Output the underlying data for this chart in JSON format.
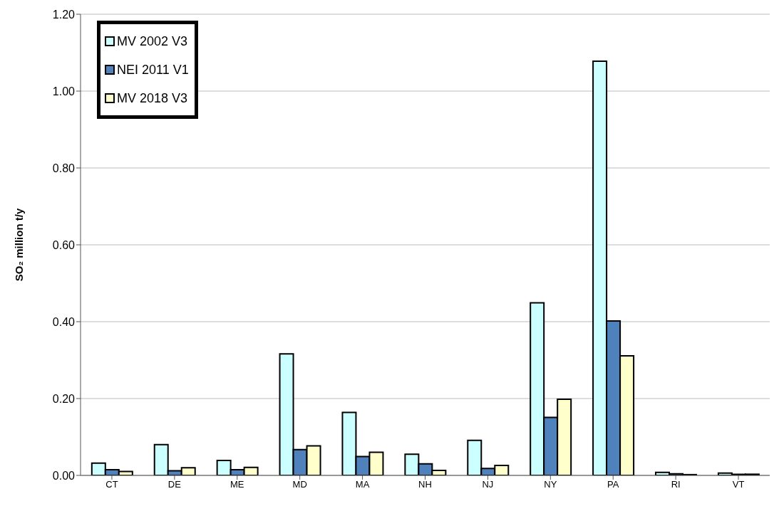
{
  "chart_data": {
    "type": "bar",
    "ylabel": "SO₂ million t/y",
    "categories": [
      "CT",
      "DE",
      "ME",
      "MD",
      "MA",
      "NH",
      "NJ",
      "NY",
      "PA",
      "RI",
      "VT"
    ],
    "series": [
      {
        "name": "MV 2002 V3",
        "color": "#ccffff",
        "values": [
          0.032,
          0.08,
          0.039,
          0.316,
          0.164,
          0.055,
          0.091,
          0.449,
          1.078,
          0.008,
          0.006
        ]
      },
      {
        "name": "NEI 2011 V1",
        "color": "#4f81bd",
        "values": [
          0.015,
          0.012,
          0.015,
          0.067,
          0.049,
          0.03,
          0.018,
          0.151,
          0.402,
          0.004,
          0.003
        ]
      },
      {
        "name": "MV 2018 V3",
        "color": "#ffffcc",
        "values": [
          0.01,
          0.02,
          0.021,
          0.077,
          0.06,
          0.013,
          0.026,
          0.198,
          0.311,
          0.002,
          0.003
        ]
      }
    ],
    "ylim": [
      0,
      1.2
    ],
    "yticks": [
      {
        "value": 0,
        "label": "0.00"
      },
      {
        "value": 0.2,
        "label": "0.20"
      },
      {
        "value": 0.4,
        "label": "0.40"
      },
      {
        "value": 0.6,
        "label": "0.60"
      },
      {
        "value": 0.8,
        "label": "0.80"
      },
      {
        "value": 1,
        "label": "1.00"
      },
      {
        "value": 1.2,
        "label": "1.20"
      }
    ],
    "grid": "y",
    "legend": "top left"
  }
}
